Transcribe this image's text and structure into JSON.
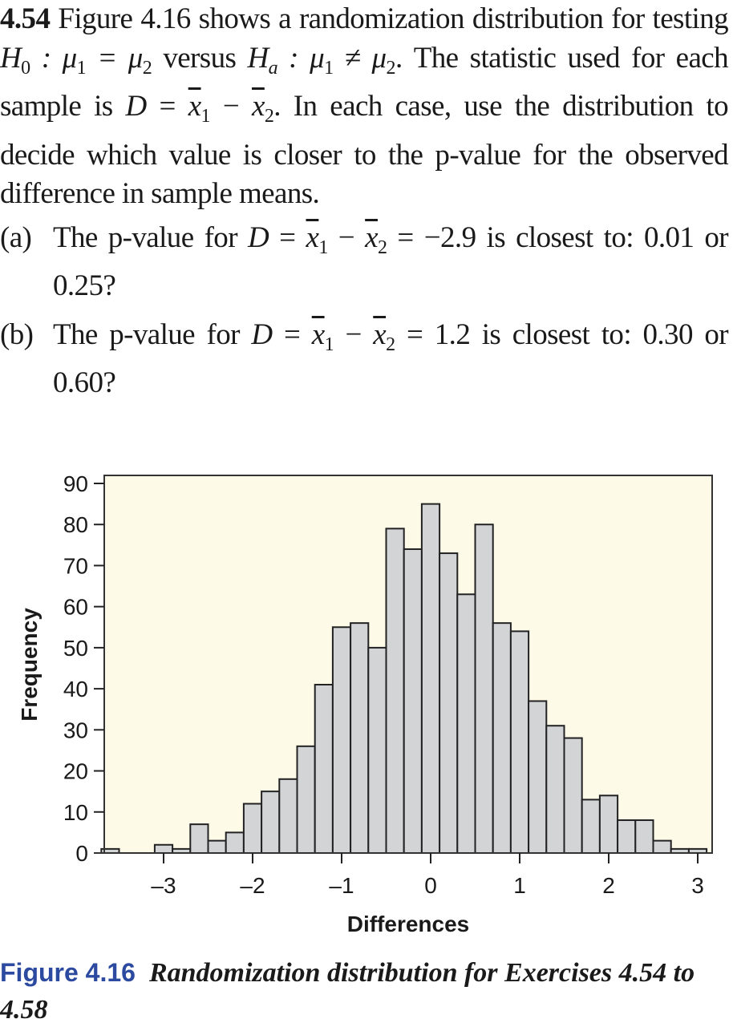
{
  "exercise": {
    "number": "4.54",
    "intro": "Figure 4.16 shows a randomization distribution for testing",
    "h0": "H",
    "h0_sub": "0",
    "h0_rel": " : μ",
    "h0_tail": " = μ",
    "versus": " versus ",
    "ha": "H",
    "ha_sub": "a",
    "ha_rel": " : μ",
    "ha_tail": " ≠ μ",
    "sentence2": ". The statistic used for each sample is ",
    "D": "D",
    "eq": " = ",
    "x": "x",
    "minus": " − ",
    "sentence3": ". In each case, use the distribution to decide which value is closer to the p-value for the observed difference in sample means.",
    "sub1": "1",
    "sub2": "2"
  },
  "parts": [
    {
      "label": "(a)",
      "pre": "The p-value for ",
      "value": " = −2.9 is closest to: 0.01 or 0.25?"
    },
    {
      "label": "(b)",
      "pre": "The p-value for ",
      "value": " = 1.2 is closest to: 0.30 or 0.60?"
    }
  ],
  "caption": {
    "figure": "Figure 4.16",
    "text": "Randomization distribution for Exercises 4.54 to 4.58"
  },
  "colors": {
    "plot_bg": "#fefae8",
    "bar_fill": "#d3d4d6",
    "bar_stroke": "#222222",
    "caption_blue": "#2c4aa0"
  },
  "chart_data": {
    "type": "bar",
    "title": "",
    "xlabel": "Differences",
    "ylabel": "Frequency",
    "ylim": [
      0,
      90
    ],
    "xlim": [
      -3.8,
      3.1
    ],
    "yticks": [
      0,
      10,
      20,
      30,
      40,
      50,
      60,
      70,
      80,
      90
    ],
    "xticks": [
      -3,
      -2,
      -1,
      0,
      1,
      2,
      3
    ],
    "xtick_labels": [
      "–3",
      "–2",
      "–1",
      "0",
      "1",
      "2",
      "3"
    ],
    "grid": false,
    "bin_width": 0.2,
    "bins_left_edges": [
      -3.7,
      -3.5,
      -3.3,
      -3.1,
      -2.9,
      -2.7,
      -2.5,
      -2.3,
      -2.1,
      -1.9,
      -1.7,
      -1.5,
      -1.3,
      -1.1,
      -0.9,
      -0.7,
      -0.5,
      -0.3,
      -0.1,
      0.1,
      0.3,
      0.5,
      0.7,
      0.9,
      1.1,
      1.3,
      1.5,
      1.7,
      1.9,
      2.1,
      2.3,
      2.5,
      2.7,
      2.9
    ],
    "values": [
      1,
      0,
      0,
      2,
      1,
      7,
      3,
      5,
      12,
      15,
      18,
      26,
      41,
      55,
      56,
      50,
      79,
      74,
      85,
      73,
      63,
      80,
      56,
      54,
      37,
      31,
      28,
      13,
      14,
      8,
      8,
      3,
      1,
      1
    ]
  }
}
